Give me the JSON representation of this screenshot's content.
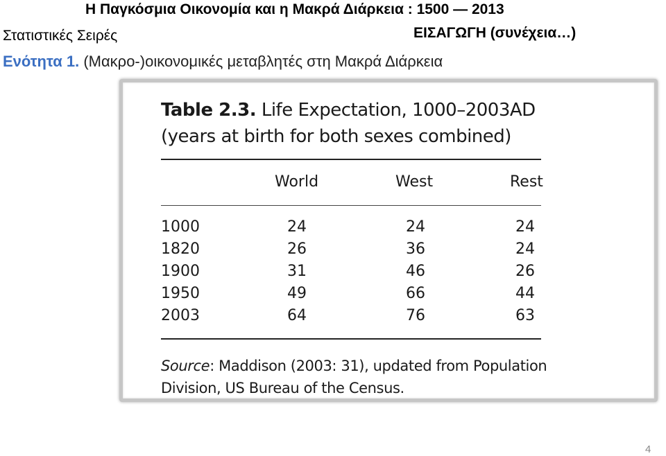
{
  "header": {
    "title": "Η Παγκόσμια Οικονομία και η Μακρά Διάρκεια : 1500 — 2013",
    "series": "Στατιστικές Σειρές",
    "intro": "ΕΙΣΑΓΩΓΗ (συνέχεια…)",
    "section_number": "Ενότητα 1.",
    "section_text": "(Μακρο-)οικονομικές μεταβλητές στη Μακρά Διάρκεια"
  },
  "table": {
    "label": "Table 2.3.",
    "title_line1": "Life Expectation, 1000–2003AD",
    "title_line2": "(years at birth for both sexes combined)",
    "columns": [
      "World",
      "West",
      "Rest"
    ],
    "rows": [
      {
        "year": "1000",
        "world": "24",
        "west": "24",
        "rest": "24"
      },
      {
        "year": "1820",
        "world": "26",
        "west": "36",
        "rest": "24"
      },
      {
        "year": "1900",
        "world": "31",
        "west": "46",
        "rest": "26"
      },
      {
        "year": "1950",
        "world": "49",
        "west": "66",
        "rest": "44"
      },
      {
        "year": "2003",
        "world": "64",
        "west": "76",
        "rest": "63"
      }
    ],
    "source_label": "Source",
    "source_line1": ": Maddison (2003: 31), updated from Population",
    "source_line2": "Division, US Bureau of the Census."
  },
  "page_number": "4"
}
